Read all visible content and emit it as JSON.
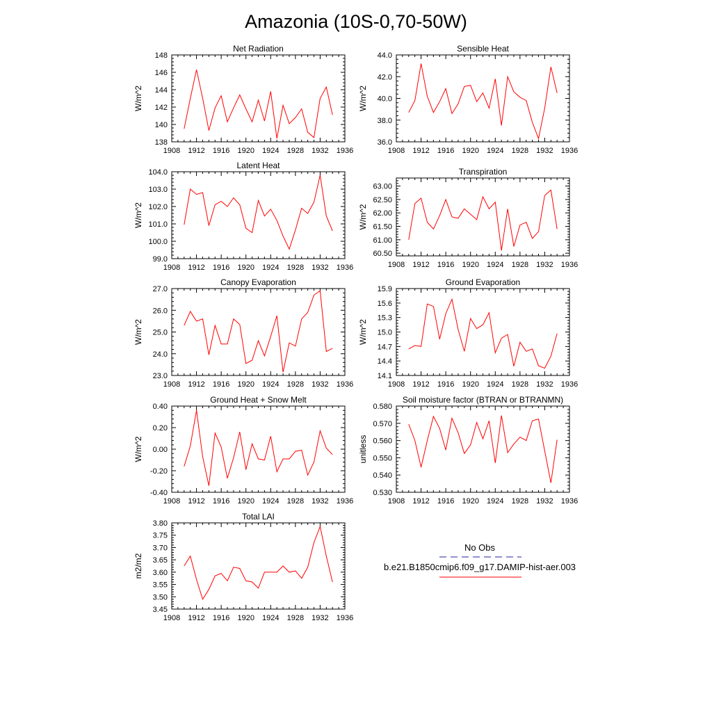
{
  "figure_title": "Amazonia (10S-0,70-50W)",
  "legend": {
    "entries": [
      {
        "label": "No Obs",
        "color": "#2020a0",
        "dash": true
      },
      {
        "label": "b.e21.B1850cmip6.f09_g17.DAMIP-hist-aer.003",
        "color": "#ff0000",
        "dash": false
      }
    ]
  },
  "colors": {
    "series": "#ff0000",
    "axis": "#000000"
  },
  "chart_data": [
    {
      "id": "net-radiation",
      "type": "line",
      "title": "Net Radiation",
      "xlabel": "",
      "ylabel": "W/m^2",
      "xlim": [
        1908,
        1936
      ],
      "xticks": [
        1908,
        1912,
        1916,
        1920,
        1924,
        1928,
        1932,
        1936
      ],
      "ylim": [
        138,
        148
      ],
      "yticks": [
        138,
        140,
        142,
        144,
        146,
        148
      ],
      "ytick_labels": [
        "138",
        "140",
        "142",
        "144",
        "146",
        "148"
      ],
      "x": [
        1910,
        1911,
        1912,
        1913,
        1914,
        1915,
        1916,
        1917,
        1918,
        1919,
        1920,
        1921,
        1922,
        1923,
        1924,
        1925,
        1926,
        1927,
        1928,
        1929,
        1930,
        1931,
        1932,
        1933,
        1934
      ],
      "series": [
        {
          "values": [
            139.5,
            143.0,
            146.3,
            143.0,
            139.3,
            141.9,
            143.3,
            140.3,
            141.9,
            143.4,
            141.8,
            140.3,
            142.8,
            140.4,
            143.8,
            138.4,
            142.2,
            140.1,
            140.8,
            141.8,
            139.1,
            138.5,
            143.0,
            144.3,
            141.1
          ]
        }
      ]
    },
    {
      "id": "sensible-heat",
      "type": "line",
      "title": "Sensible Heat",
      "xlabel": "",
      "ylabel": "W/m^2",
      "xlim": [
        1908,
        1936
      ],
      "xticks": [
        1908,
        1912,
        1916,
        1920,
        1924,
        1928,
        1932,
        1936
      ],
      "ylim": [
        36,
        44
      ],
      "yticks": [
        36,
        38,
        40,
        42,
        44
      ],
      "ytick_labels": [
        "36.0",
        "38.0",
        "40.0",
        "42.0",
        "44.0"
      ],
      "x": [
        1910,
        1911,
        1912,
        1913,
        1914,
        1915,
        1916,
        1917,
        1918,
        1919,
        1920,
        1921,
        1922,
        1923,
        1924,
        1925,
        1926,
        1927,
        1928,
        1929,
        1930,
        1931,
        1932,
        1933,
        1934
      ],
      "series": [
        {
          "values": [
            38.7,
            39.8,
            43.2,
            40.2,
            38.7,
            39.7,
            40.9,
            38.6,
            39.5,
            41.1,
            41.2,
            39.7,
            40.5,
            39.1,
            41.8,
            37.5,
            42.0,
            40.6,
            40.1,
            39.8,
            37.8,
            36.3,
            39.1,
            42.9,
            40.5
          ]
        }
      ]
    },
    {
      "id": "latent-heat",
      "type": "line",
      "title": "Latent Heat",
      "xlabel": "",
      "ylabel": "W/m^2",
      "xlim": [
        1908,
        1936
      ],
      "xticks": [
        1908,
        1912,
        1916,
        1920,
        1924,
        1928,
        1932,
        1936
      ],
      "ylim": [
        99,
        104
      ],
      "yticks": [
        99,
        100,
        101,
        102,
        103,
        104
      ],
      "ytick_labels": [
        "99.0",
        "100.0",
        "101.0",
        "102.0",
        "103.0",
        "104.0"
      ],
      "x": [
        1910,
        1911,
        1912,
        1913,
        1914,
        1915,
        1916,
        1917,
        1918,
        1919,
        1920,
        1921,
        1922,
        1923,
        1924,
        1925,
        1926,
        1927,
        1928,
        1929,
        1930,
        1931,
        1932,
        1933,
        1934
      ],
      "series": [
        {
          "values": [
            100.95,
            103.0,
            102.7,
            102.8,
            100.9,
            102.1,
            102.3,
            102.0,
            102.5,
            102.1,
            100.75,
            100.5,
            102.35,
            101.45,
            101.85,
            101.2,
            100.3,
            99.55,
            100.65,
            101.9,
            101.6,
            102.25,
            103.8,
            101.45,
            100.6
          ]
        }
      ]
    },
    {
      "id": "transpiration",
      "type": "line",
      "title": "Transpiration",
      "xlabel": "",
      "ylabel": "W/m^2",
      "xlim": [
        1908,
        1936
      ],
      "xticks": [
        1908,
        1912,
        1916,
        1920,
        1924,
        1928,
        1932,
        1936
      ],
      "ylim": [
        60.4,
        63.3
      ],
      "yticks": [
        60.5,
        61.0,
        61.5,
        62.0,
        62.5,
        63.0
      ],
      "ytick_labels": [
        "60.50",
        "61.00",
        "61.50",
        "62.00",
        "62.50",
        "63.00"
      ],
      "x": [
        1910,
        1911,
        1912,
        1913,
        1914,
        1915,
        1916,
        1917,
        1918,
        1919,
        1920,
        1921,
        1922,
        1923,
        1924,
        1925,
        1926,
        1927,
        1928,
        1929,
        1930,
        1931,
        1932,
        1933,
        1934
      ],
      "series": [
        {
          "values": [
            61.0,
            62.35,
            62.55,
            61.65,
            61.4,
            61.9,
            62.5,
            61.85,
            61.8,
            62.15,
            61.95,
            61.75,
            62.6,
            62.15,
            62.4,
            60.6,
            62.15,
            60.75,
            61.55,
            61.65,
            61.05,
            61.3,
            62.65,
            62.85,
            61.4
          ]
        }
      ]
    },
    {
      "id": "canopy-evaporation",
      "type": "line",
      "title": "Canopy Evaporation",
      "xlabel": "",
      "ylabel": "W/m^2",
      "xlim": [
        1908,
        1936
      ],
      "xticks": [
        1908,
        1912,
        1916,
        1920,
        1924,
        1928,
        1932,
        1936
      ],
      "ylim": [
        23,
        27
      ],
      "yticks": [
        23,
        24,
        25,
        26,
        27
      ],
      "ytick_labels": [
        "23.0",
        "24.0",
        "25.0",
        "26.0",
        "27.0"
      ],
      "x": [
        1910,
        1911,
        1912,
        1913,
        1914,
        1915,
        1916,
        1917,
        1918,
        1919,
        1920,
        1921,
        1922,
        1923,
        1924,
        1925,
        1926,
        1927,
        1928,
        1929,
        1930,
        1931,
        1932,
        1933,
        1934
      ],
      "series": [
        {
          "values": [
            25.3,
            25.95,
            25.5,
            25.6,
            23.95,
            25.3,
            24.45,
            24.45,
            25.6,
            25.35,
            23.55,
            23.7,
            24.6,
            23.9,
            24.8,
            25.75,
            23.15,
            24.5,
            24.35,
            25.6,
            25.9,
            26.7,
            26.9,
            24.1,
            24.25
          ]
        }
      ]
    },
    {
      "id": "ground-evaporation",
      "type": "line",
      "title": "Ground Evaporation",
      "xlabel": "",
      "ylabel": "W/m^2",
      "xlim": [
        1908,
        1936
      ],
      "xticks": [
        1908,
        1912,
        1916,
        1920,
        1924,
        1928,
        1932,
        1936
      ],
      "ylim": [
        14.1,
        15.9
      ],
      "yticks": [
        14.1,
        14.4,
        14.7,
        15.0,
        15.3,
        15.6,
        15.9
      ],
      "ytick_labels": [
        "14.1",
        "14.4",
        "14.7",
        "15.0",
        "15.3",
        "15.6",
        "15.9"
      ],
      "x": [
        1910,
        1911,
        1912,
        1913,
        1914,
        1915,
        1916,
        1917,
        1918,
        1919,
        1920,
        1921,
        1922,
        1923,
        1924,
        1925,
        1926,
        1927,
        1928,
        1929,
        1930,
        1931,
        1932,
        1933,
        1934
      ],
      "series": [
        {
          "values": [
            14.65,
            14.72,
            14.7,
            15.58,
            15.53,
            14.85,
            15.38,
            15.68,
            15.05,
            14.6,
            15.28,
            15.07,
            15.15,
            15.4,
            14.57,
            14.87,
            14.95,
            14.29,
            14.79,
            14.6,
            14.65,
            14.3,
            14.25,
            14.5,
            14.97
          ]
        }
      ]
    },
    {
      "id": "ground-heat-snow-melt",
      "type": "line",
      "title": "Ground Heat + Snow Melt",
      "xlabel": "",
      "ylabel": "W/m^2",
      "xlim": [
        1908,
        1936
      ],
      "xticks": [
        1908,
        1912,
        1916,
        1920,
        1924,
        1928,
        1932,
        1936
      ],
      "ylim": [
        -0.4,
        0.4
      ],
      "yticks": [
        -0.4,
        -0.2,
        0.0,
        0.2,
        0.4
      ],
      "ytick_labels": [
        "-0.40",
        "-0.20",
        "0.00",
        "0.20",
        "0.40"
      ],
      "x": [
        1910,
        1911,
        1912,
        1913,
        1914,
        1915,
        1916,
        1917,
        1918,
        1919,
        1920,
        1921,
        1922,
        1923,
        1924,
        1925,
        1926,
        1927,
        1928,
        1929,
        1930,
        1931,
        1932,
        1933,
        1934
      ],
      "series": [
        {
          "values": [
            -0.16,
            0.03,
            0.36,
            -0.07,
            -0.34,
            0.15,
            0.02,
            -0.27,
            -0.08,
            0.16,
            -0.19,
            0.05,
            -0.09,
            -0.1,
            0.12,
            -0.21,
            -0.09,
            -0.09,
            -0.02,
            -0.01,
            -0.24,
            -0.12,
            0.17,
            0.01,
            -0.05
          ]
        }
      ]
    },
    {
      "id": "soil-moisture-factor",
      "type": "line",
      "title": "Soil moisture factor (BTRAN or BTRANMN)",
      "xlabel": "",
      "ylabel": "unitless",
      "xlim": [
        1908,
        1936
      ],
      "xticks": [
        1908,
        1912,
        1916,
        1920,
        1924,
        1928,
        1932,
        1936
      ],
      "ylim": [
        0.53,
        0.58
      ],
      "yticks": [
        0.53,
        0.54,
        0.55,
        0.56,
        0.57,
        0.58
      ],
      "ytick_labels": [
        "0.530",
        "0.540",
        "0.550",
        "0.560",
        "0.570",
        "0.580"
      ],
      "x": [
        1910,
        1911,
        1912,
        1913,
        1914,
        1915,
        1916,
        1917,
        1918,
        1919,
        1920,
        1921,
        1922,
        1923,
        1924,
        1925,
        1926,
        1927,
        1928,
        1929,
        1930,
        1931,
        1932,
        1933,
        1934
      ],
      "series": [
        {
          "values": [
            0.5695,
            0.56,
            0.5445,
            0.56,
            0.574,
            0.567,
            0.5545,
            0.573,
            0.5645,
            0.5525,
            0.5575,
            0.5705,
            0.561,
            0.5715,
            0.547,
            0.5745,
            0.553,
            0.558,
            0.562,
            0.56,
            0.5715,
            0.5725,
            0.554,
            0.5355,
            0.5605
          ]
        }
      ]
    },
    {
      "id": "total-lai",
      "type": "line",
      "title": "Total LAI",
      "xlabel": "",
      "ylabel": "m2/m2",
      "xlim": [
        1908,
        1936
      ],
      "xticks": [
        1908,
        1912,
        1916,
        1920,
        1924,
        1928,
        1932,
        1936
      ],
      "ylim": [
        3.45,
        3.8
      ],
      "yticks": [
        3.45,
        3.5,
        3.55,
        3.6,
        3.65,
        3.7,
        3.75,
        3.8
      ],
      "ytick_labels": [
        "3.45",
        "3.50",
        "3.55",
        "3.60",
        "3.65",
        "3.70",
        "3.75",
        "3.80"
      ],
      "x": [
        1910,
        1911,
        1912,
        1913,
        1914,
        1915,
        1916,
        1917,
        1918,
        1919,
        1920,
        1921,
        1922,
        1923,
        1924,
        1925,
        1926,
        1927,
        1928,
        1929,
        1930,
        1931,
        1932,
        1933,
        1934
      ],
      "series": [
        {
          "values": [
            3.625,
            3.665,
            3.57,
            3.49,
            3.53,
            3.585,
            3.595,
            3.565,
            3.62,
            3.615,
            3.565,
            3.56,
            3.535,
            3.6,
            3.6,
            3.6,
            3.625,
            3.6,
            3.605,
            3.575,
            3.62,
            3.72,
            3.785,
            3.665,
            3.56
          ]
        }
      ]
    }
  ]
}
